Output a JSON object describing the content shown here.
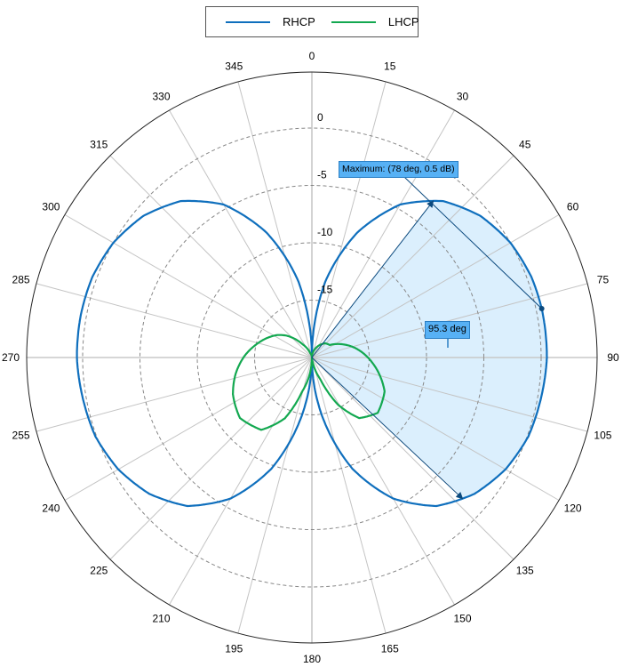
{
  "legend": {
    "items": [
      {
        "label": "RHCP",
        "color": "#0f6fbd"
      },
      {
        "label": "LHCP",
        "color": "#13a850"
      }
    ]
  },
  "annotations": {
    "maximum_label": "Maximum: (78 deg, 0.5 dB)",
    "beamwidth_label": "95.3 deg",
    "shade_color": "#dbeffd",
    "callout_color": "#57b1f5"
  },
  "chart_data": {
    "type": "polar-line",
    "title": "",
    "angle_ticks": [
      0,
      15,
      30,
      45,
      60,
      75,
      90,
      105,
      120,
      135,
      150,
      165,
      180,
      195,
      210,
      225,
      240,
      255,
      270,
      285,
      300,
      315,
      330,
      345
    ],
    "radial_ticks": [
      0,
      -5,
      -10,
      -15
    ],
    "radial_range": [
      -20,
      5
    ],
    "angle_direction": "clockwise",
    "zero_location": "top",
    "grid": true,
    "legend_position": "top",
    "series": [
      {
        "name": "RHCP",
        "color": "#0f6fbd",
        "angles": [
          0,
          10,
          20,
          30,
          40,
          50,
          60,
          70,
          78,
          80,
          90,
          100,
          110,
          120,
          130,
          140,
          150,
          160,
          170,
          180,
          190,
          200,
          210,
          220,
          230,
          240,
          250,
          260,
          270,
          280,
          290,
          300,
          310,
          320,
          330,
          340,
          350,
          360
        ],
        "values_db": [
          -20,
          -13.3,
          -8.4,
          -4.6,
          -2.2,
          -0.8,
          0.0,
          0.4,
          0.5,
          0.5,
          0.5,
          0.3,
          0.1,
          -0.5,
          -1.5,
          -3.1,
          -5.8,
          -9.7,
          -14.8,
          -20,
          -14.8,
          -9.7,
          -5.8,
          -3.1,
          -1.5,
          -0.5,
          0.1,
          0.3,
          0.5,
          0.5,
          0.4,
          0.0,
          -0.8,
          -2.2,
          -4.6,
          -8.4,
          -13.3,
          -20
        ]
      },
      {
        "name": "LHCP",
        "color": "#13a850",
        "angles": [
          0,
          30,
          43,
          55,
          78,
          95,
          115,
          130,
          142,
          151,
          159,
          170,
          180,
          196,
          204,
          215,
          230,
          245,
          258,
          271,
          283,
          293,
          303,
          311,
          325,
          340,
          360
        ],
        "values_db": [
          -20,
          -18.8,
          -18.3,
          -18.1,
          -16.1,
          -14.7,
          -13.0,
          -12.5,
          -13.3,
          -15.3,
          -18.0,
          -19.6,
          -20,
          -16.9,
          -14.2,
          -12.3,
          -11.8,
          -12.4,
          -13.2,
          -14.1,
          -15.0,
          -15.7,
          -16.4,
          -17.1,
          -18.6,
          -19.6,
          -20
        ]
      }
    ],
    "markers": {
      "maximum": {
        "angle": 78,
        "value_db": 0.5,
        "label": "Maximum: (78 deg, 0.5 dB)"
      },
      "beamwidth": {
        "start_angle": 37.8,
        "end_angle": 133.1,
        "width_deg": 95.3,
        "label": "95.3 deg"
      }
    }
  }
}
